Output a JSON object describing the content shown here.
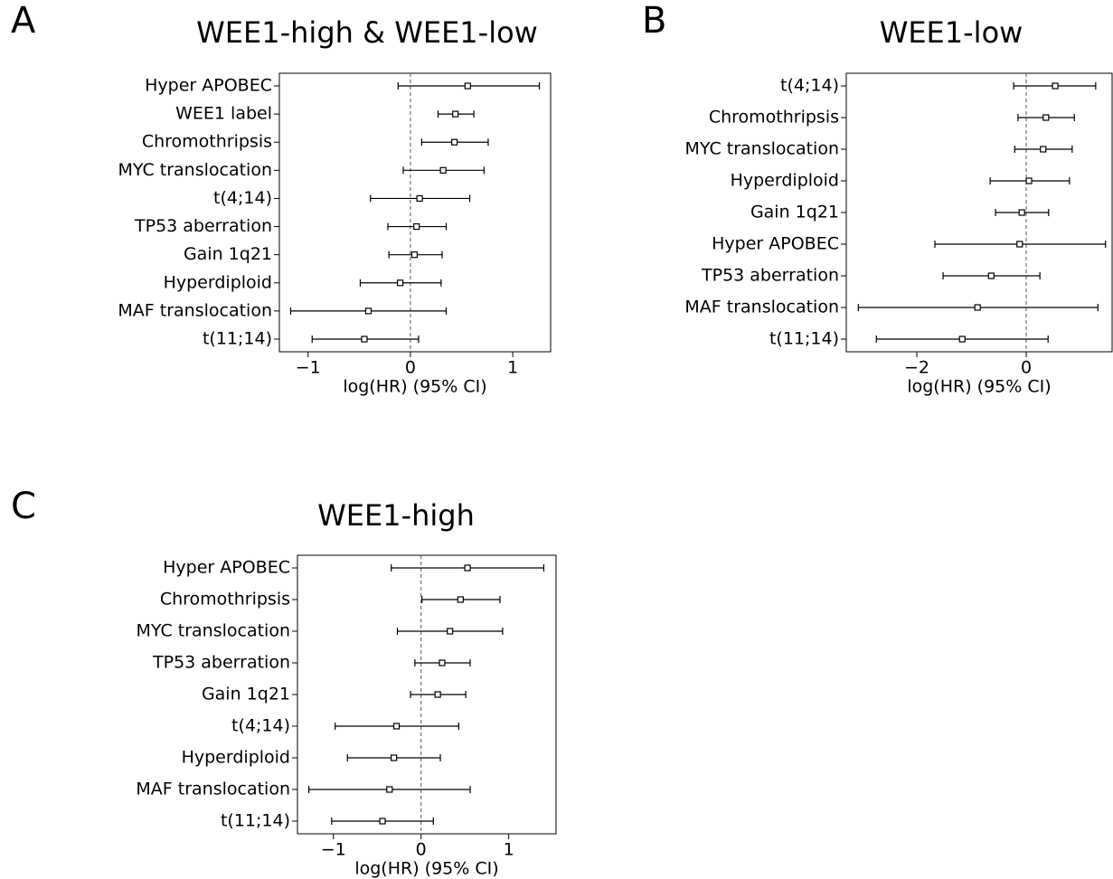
{
  "chart_data": [
    {
      "type": "forest",
      "panel": "A",
      "title": "WEE1-high & WEE1-low",
      "xlabel": "log(HR) (95% CI)",
      "categories": [
        "Hyper APOBEC",
        "WEE1 label",
        "Chromothripsis",
        "MYC translocation",
        "t(4;14)",
        "TP53 aberration",
        "Gain 1q21",
        "Hyperdiploid",
        "MAF translocation",
        "t(11;14)"
      ],
      "values": [
        0.56,
        0.44,
        0.43,
        0.32,
        0.09,
        0.06,
        0.04,
        -0.1,
        -0.41,
        -0.45
      ],
      "lower": [
        -0.12,
        0.27,
        0.11,
        -0.07,
        -0.39,
        -0.22,
        -0.21,
        -0.49,
        -1.17,
        -0.96
      ],
      "upper": [
        1.26,
        0.62,
        0.76,
        0.72,
        0.58,
        0.35,
        0.31,
        0.3,
        0.35,
        0.08
      ],
      "xlim": [
        -1.28,
        1.37
      ],
      "xticks": [
        {
          "value": -1,
          "label": "−1"
        },
        0,
        1
      ],
      "reference_line": 0,
      "color": "#000000"
    },
    {
      "type": "forest",
      "panel": "B",
      "title": "WEE1-low",
      "xlabel": "log(HR) (95% CI)",
      "categories": [
        "t(4;14)",
        "Chromothripsis",
        "MYC translocation",
        "Hyperdiploid",
        "Gain 1q21",
        "Hyper APOBEC",
        "TP53 aberration",
        "MAF translocation",
        "t(11;14)"
      ],
      "values": [
        0.53,
        0.36,
        0.31,
        0.05,
        -0.08,
        -0.12,
        -0.64,
        -0.89,
        -1.17
      ],
      "lower": [
        -0.23,
        -0.15,
        -0.21,
        -0.66,
        -0.56,
        -1.67,
        -1.52,
        -3.07,
        -2.74
      ],
      "upper": [
        1.27,
        0.88,
        0.84,
        0.79,
        0.41,
        1.45,
        0.25,
        1.31,
        0.4
      ],
      "xlim": [
        -3.29,
        1.57
      ],
      "xticks": [
        {
          "value": -2,
          "label": "−2"
        },
        0
      ],
      "reference_line": 0,
      "color": "#000000"
    },
    {
      "type": "forest",
      "panel": "C",
      "title": "WEE1-high",
      "xlabel": "log(HR) (95% CI)",
      "categories": [
        "Hyper APOBEC",
        "Chromothripsis",
        "MYC translocation",
        "TP53 aberration",
        "Gain 1q21",
        "t(4;14)",
        "Hyperdiploid",
        "MAF translocation",
        "t(11;14)"
      ],
      "values": [
        0.53,
        0.45,
        0.33,
        0.24,
        0.19,
        -0.28,
        -0.31,
        -0.36,
        -0.44
      ],
      "lower": [
        -0.34,
        0.01,
        -0.27,
        -0.07,
        -0.12,
        -0.98,
        -0.84,
        -1.28,
        -1.02
      ],
      "upper": [
        1.4,
        0.9,
        0.93,
        0.56,
        0.51,
        0.43,
        0.22,
        0.56,
        0.14
      ],
      "xlim": [
        -1.41,
        1.54
      ],
      "xticks": [
        {
          "value": -1,
          "label": "−1"
        },
        0,
        {
          "value": 1,
          "label": "1"
        }
      ],
      "reference_line": 0,
      "color": "#000000"
    }
  ]
}
